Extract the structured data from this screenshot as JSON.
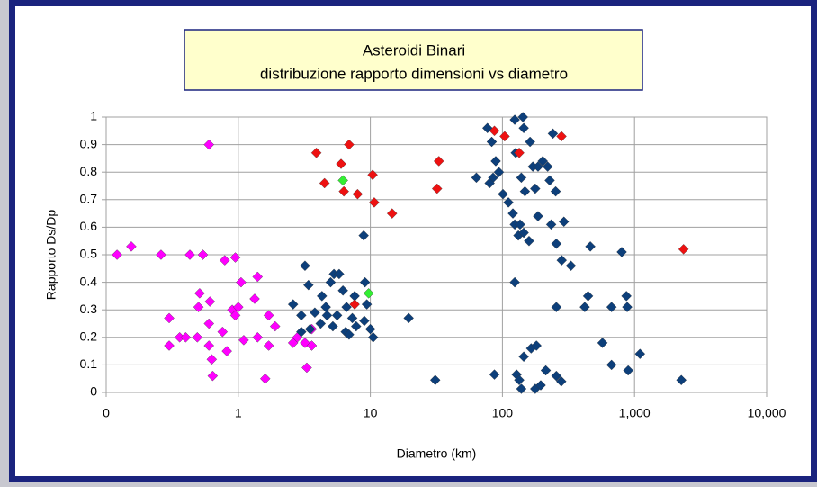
{
  "chart_data": {
    "type": "scatter",
    "title": "Asteroidi Binari",
    "subtitle": "distribuzione rapporto dimensioni vs diametro",
    "x_label": "Diametro (km)",
    "y_label": "Rapporto Ds/Dp",
    "xscale": "log",
    "grid": true,
    "xlim": [
      0.1,
      10000
    ],
    "xticks": [
      {
        "value": 0.1,
        "label": "0"
      },
      1,
      10,
      100,
      {
        "value": 1000,
        "label": "1,000"
      },
      {
        "value": 10000,
        "label": "10,000"
      }
    ],
    "ylim": [
      0,
      1
    ],
    "yticks": [
      0,
      0.1,
      0.2,
      0.3,
      0.4,
      0.5,
      0.6,
      0.7,
      0.8,
      0.9,
      1
    ],
    "series": [
      {
        "color": "#ff00ff",
        "x": [
          0.121,
          0.155,
          0.26,
          0.43,
          0.54,
          0.6,
          0.79,
          0.95,
          0.51,
          0.5,
          0.61,
          0.3,
          0.3,
          0.36,
          0.4,
          0.49,
          0.6,
          0.6,
          0.63,
          0.64,
          0.76,
          0.82,
          0.9,
          0.95,
          1.0,
          1.05,
          1.1,
          1.33,
          1.4,
          1.4,
          1.7,
          1.7,
          1.9,
          1.6,
          2.6,
          2.8,
          3.2,
          3.3,
          3.6,
          3.6
        ],
        "values": [
          0.5,
          0.53,
          0.5,
          0.5,
          0.5,
          0.9,
          0.48,
          0.49,
          0.36,
          0.31,
          0.33,
          0.27,
          0.17,
          0.2,
          0.2,
          0.2,
          0.25,
          0.17,
          0.12,
          0.06,
          0.22,
          0.15,
          0.3,
          0.28,
          0.31,
          0.4,
          0.19,
          0.34,
          0.42,
          0.2,
          0.17,
          0.28,
          0.24,
          0.05,
          0.18,
          0.2,
          0.18,
          0.09,
          0.17,
          0.23
        ]
      },
      {
        "color": "#0d3f7a",
        "x": [
          3.2,
          2.6,
          3.0,
          3.4,
          3.8,
          4.3,
          4.6,
          5.0,
          5.3,
          5.8,
          6.2,
          6.6,
          7.3,
          7.6,
          8.9,
          9.1,
          9.4,
          10,
          10.5,
          3.0,
          3.5,
          4.2,
          4.7,
          5.2,
          5.6,
          6.5,
          6.9,
          7.8,
          9.0,
          19.5,
          31,
          63.5,
          77,
          83,
          89,
          85,
          80,
          94,
          101,
          111,
          120,
          124,
          132,
          136,
          145,
          159,
          124,
          143,
          145,
          162,
          170,
          186,
          202,
          220,
          126,
          139,
          148,
          177,
          228,
          253,
          241,
          186,
          234,
          256,
          292,
          281,
          330,
          124,
          463,
          800,
          445,
          420,
          670,
          868,
          880,
          256,
          87,
          128,
          134,
          139,
          145,
          165,
          181,
          177,
          195,
          213,
          256,
          279,
          572,
          670,
          896,
          1100,
          2260
        ],
        "values": [
          0.46,
          0.32,
          0.28,
          0.39,
          0.29,
          0.35,
          0.31,
          0.4,
          0.43,
          0.43,
          0.37,
          0.31,
          0.27,
          0.35,
          0.57,
          0.4,
          0.32,
          0.23,
          0.2,
          0.22,
          0.23,
          0.25,
          0.28,
          0.24,
          0.28,
          0.22,
          0.21,
          0.24,
          0.26,
          0.27,
          0.045,
          0.78,
          0.96,
          0.91,
          0.84,
          0.78,
          0.76,
          0.8,
          0.72,
          0.69,
          0.65,
          0.61,
          0.57,
          0.61,
          0.58,
          0.55,
          0.99,
          1.0,
          0.96,
          0.91,
          0.82,
          0.82,
          0.84,
          0.82,
          0.87,
          0.78,
          0.73,
          0.74,
          0.77,
          0.73,
          0.94,
          0.64,
          0.61,
          0.54,
          0.62,
          0.48,
          0.46,
          0.4,
          0.53,
          0.51,
          0.35,
          0.31,
          0.31,
          0.35,
          0.31,
          0.31,
          0.065,
          0.065,
          0.045,
          0.013,
          0.13,
          0.16,
          0.17,
          0.013,
          0.026,
          0.08,
          0.06,
          0.04,
          0.18,
          0.1,
          0.08,
          0.14,
          0.045
        ]
      },
      {
        "color": "#ee1111",
        "x": [
          3.9,
          6.9,
          6.0,
          4.5,
          6.3,
          8.0,
          10.4,
          10.7,
          14.6,
          33,
          32,
          87,
          104,
          134,
          280,
          2350,
          7.6
        ],
        "values": [
          0.87,
          0.9,
          0.83,
          0.76,
          0.73,
          0.72,
          0.79,
          0.69,
          0.65,
          0.84,
          0.74,
          0.95,
          0.93,
          0.87,
          0.93,
          0.52,
          0.32
        ]
      },
      {
        "color": "#33ee33",
        "x": [
          6.2,
          9.7
        ],
        "values": [
          0.77,
          0.36
        ]
      }
    ]
  }
}
